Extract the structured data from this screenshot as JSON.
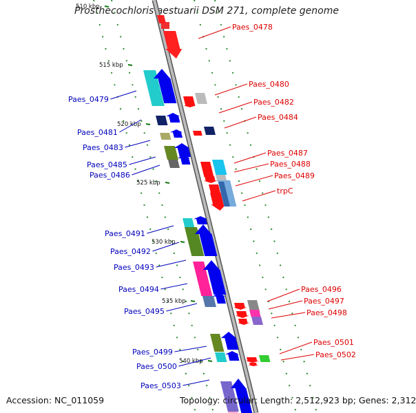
{
  "title": "Prosthecochloris aestuarii DSM 271, complete genome",
  "accession": "Accession: NC_011059",
  "topology": "Topology: circular; Length: 2,512,923 bp; Genes: 2,312",
  "colors": {
    "forward_label": "#0000bb",
    "reverse_label": "#dd0000",
    "forward_arrow": "#0000ee",
    "reverse_arrow": "#ff0000",
    "backbone": "#999999",
    "tick_marks": "#117711"
  },
  "ticks": [
    "510 kbp",
    "515 kbp",
    "520 kbp",
    "525 kbp",
    "530 kbp",
    "535 kbp",
    "540 kbp"
  ],
  "forward_genes": [
    {
      "label": "Paes_0479"
    },
    {
      "label": "Paes_0481"
    },
    {
      "label": "Paes_0483"
    },
    {
      "label": "Paes_0485"
    },
    {
      "label": "Paes_0486"
    },
    {
      "label": "Paes_0491"
    },
    {
      "label": "Paes_0492"
    },
    {
      "label": "Paes_0493"
    },
    {
      "label": "Paes_0494"
    },
    {
      "label": "Paes_0495"
    },
    {
      "label": "Paes_0499"
    },
    {
      "label": "Paes_0500"
    },
    {
      "label": "Paes_0503"
    }
  ],
  "reverse_genes": [
    {
      "label": "Paes_0478"
    },
    {
      "label": "Paes_0480"
    },
    {
      "label": "Paes_0482"
    },
    {
      "label": "Paes_0484"
    },
    {
      "label": "Paes_0487"
    },
    {
      "label": "Paes_0488"
    },
    {
      "label": "Paes_0489"
    },
    {
      "label": "trpC"
    },
    {
      "label": "Paes_0496"
    },
    {
      "label": "Paes_0497"
    },
    {
      "label": "Paes_0498"
    },
    {
      "label": "Paes_0501"
    },
    {
      "label": "Paes_0502"
    }
  ]
}
